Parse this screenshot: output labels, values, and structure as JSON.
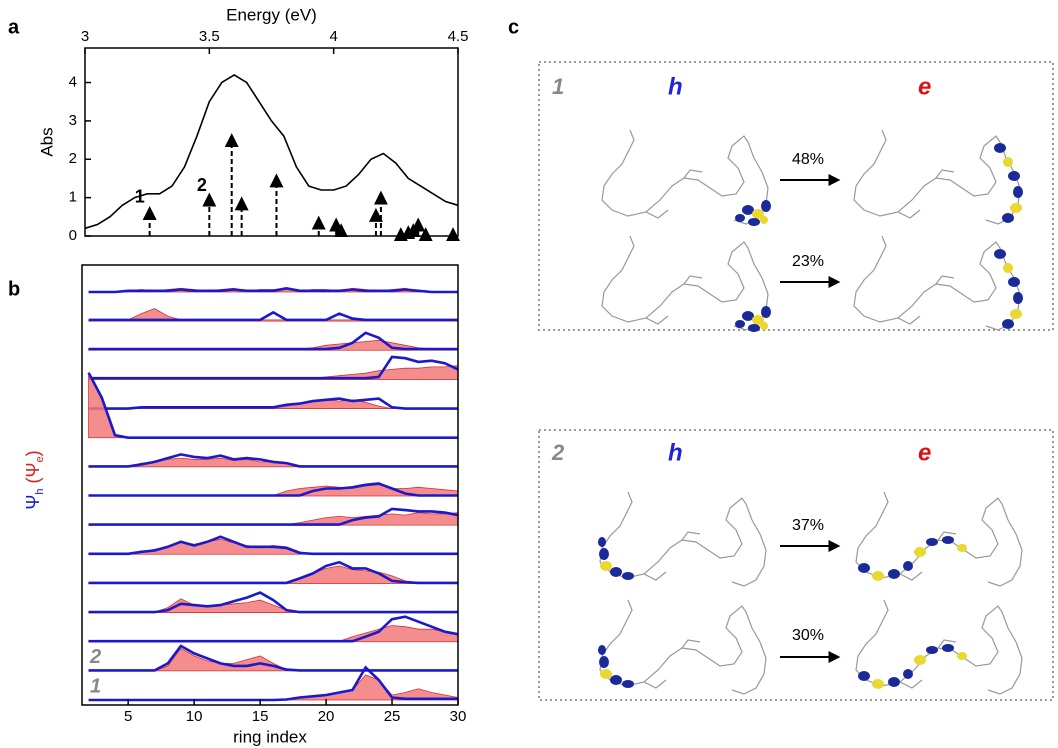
{
  "panel_labels": [
    "a",
    "b",
    "c"
  ],
  "chart_data": [
    {
      "type": "line",
      "x_label": "Energy (eV)",
      "y_label": "Abs",
      "color": "#000000",
      "x": [
        3.0,
        3.05,
        3.1,
        3.15,
        3.2,
        3.25,
        3.3,
        3.35,
        3.4,
        3.45,
        3.5,
        3.55,
        3.6,
        3.65,
        3.7,
        3.75,
        3.8,
        3.85,
        3.9,
        3.95,
        4.0,
        4.05,
        4.1,
        4.15,
        4.2,
        4.25,
        4.3,
        4.35,
        4.4,
        4.45,
        4.5
      ],
      "values": [
        0.2,
        0.3,
        0.5,
        0.8,
        1.0,
        1.1,
        1.1,
        1.3,
        1.8,
        2.6,
        3.5,
        4.0,
        4.2,
        4.0,
        3.5,
        3.0,
        2.6,
        1.8,
        1.3,
        1.2,
        1.2,
        1.3,
        1.6,
        2.0,
        2.15,
        1.9,
        1.5,
        1.3,
        1.1,
        0.9,
        0.8
      ],
      "sticks": {
        "x": [
          3.26,
          3.5,
          3.59,
          3.63,
          3.77,
          3.94,
          4.01,
          4.03,
          4.17,
          4.19,
          4.27,
          4.3,
          4.32,
          4.34,
          4.37,
          4.48
        ],
        "values": [
          0.6,
          0.95,
          2.5,
          0.85,
          1.45,
          0.35,
          0.3,
          0.15,
          0.55,
          1.0,
          0.05,
          0.1,
          0.15,
          0.3,
          0.05,
          0.05
        ]
      },
      "annotations": [
        "1",
        "2"
      ],
      "xlim": [
        3,
        4.5
      ],
      "xticks": [
        3,
        3.5,
        4,
        4.5
      ],
      "ylim": [
        0,
        4.9
      ],
      "yticks": [
        0,
        1,
        2,
        3,
        4
      ]
    },
    {
      "type": "stack",
      "x_label": "ring index",
      "y_label": [
        "Ψ",
        "h",
        " (Ψ",
        "e",
        ")"
      ],
      "h_color": "#1a1acc",
      "e_color": "#f27a7a",
      "x": [
        2,
        3,
        4,
        5,
        6,
        7,
        8,
        9,
        10,
        11,
        12,
        13,
        14,
        15,
        16,
        17,
        18,
        19,
        20,
        21,
        22,
        23,
        24,
        25,
        26,
        27,
        28,
        29,
        30
      ],
      "xlim": [
        1.5,
        30
      ],
      "xticks": [
        5,
        10,
        15,
        20,
        25,
        30
      ],
      "rows": [
        {
          "e": [
            0,
            0,
            0,
            0.05,
            0.1,
            0.05,
            0.1,
            0.15,
            0.1,
            0.05,
            0.1,
            0.15,
            0.05,
            0.1,
            0.1,
            0.15,
            0.05,
            0.1,
            0.1,
            0.05,
            0.15,
            0.1,
            0.05,
            0.1,
            0.15,
            0.05,
            0,
            0,
            0
          ],
          "h": [
            0,
            0,
            0,
            0.05,
            0.05,
            0.05,
            0.05,
            0.1,
            0.05,
            0.05,
            0.05,
            0.1,
            0.05,
            0.05,
            0.05,
            0.15,
            0.05,
            0.05,
            0.05,
            0.05,
            0.1,
            0.05,
            0.05,
            0.05,
            0.1,
            0.05,
            0,
            0,
            0
          ]
        },
        {
          "e": [
            0,
            0,
            0,
            0.05,
            0.3,
            0.5,
            0.2,
            0.05,
            0.05,
            0.05,
            0.05,
            0.05,
            0.05,
            0.05,
            0.05,
            0.05,
            0.05,
            0.05,
            0.05,
            0.05,
            0.05,
            0.05,
            0.05,
            0.05,
            0.05,
            0.05,
            0.05,
            0.05,
            0.05
          ],
          "h": [
            0.05,
            0.05,
            0.05,
            0.05,
            0.05,
            0.05,
            0.05,
            0.05,
            0.05,
            0.05,
            0.05,
            0.05,
            0.05,
            0.05,
            0.35,
            0.05,
            0.05,
            0.05,
            0.05,
            0.3,
            0.1,
            0.05,
            0.05,
            0.05,
            0.05,
            0.05,
            0.05,
            0.05,
            0.05
          ]
        },
        {
          "e": [
            0.05,
            0.05,
            0.05,
            0.05,
            0.05,
            0.05,
            0.05,
            0.05,
            0.05,
            0.05,
            0.05,
            0.05,
            0.05,
            0.05,
            0.05,
            0.05,
            0.05,
            0.1,
            0.2,
            0.25,
            0.3,
            0.35,
            0.4,
            0.3,
            0.2,
            0.1,
            0.05,
            0.05,
            0.05
          ],
          "h": [
            0.05,
            0.05,
            0.05,
            0.05,
            0.05,
            0.05,
            0.05,
            0.05,
            0.05,
            0.05,
            0.05,
            0.05,
            0.05,
            0.05,
            0.05,
            0.05,
            0.05,
            0.05,
            0.05,
            0.1,
            0.3,
            0.7,
            0.5,
            0.1,
            0.05,
            0.05,
            0.05,
            0.05,
            0.05
          ]
        },
        {
          "e": [
            0.05,
            0.05,
            0.05,
            0.05,
            0.05,
            0.05,
            0.05,
            0.05,
            0.05,
            0.05,
            0.05,
            0.05,
            0.05,
            0.05,
            0.05,
            0.05,
            0.05,
            0.05,
            0.1,
            0.15,
            0.2,
            0.25,
            0.35,
            0.4,
            0.45,
            0.45,
            0.5,
            0.5,
            0.55
          ],
          "h": [
            0.05,
            0.05,
            0.05,
            0.05,
            0.05,
            0.05,
            0.05,
            0.05,
            0.05,
            0.05,
            0.05,
            0.05,
            0.05,
            0.05,
            0.05,
            0.05,
            0.05,
            0.05,
            0.05,
            0.05,
            0.05,
            0.05,
            0.1,
            0.9,
            0.85,
            0.7,
            0.75,
            0.65,
            0.4
          ]
        },
        {
          "e": [
            0,
            0,
            0,
            0,
            0.05,
            0.05,
            0.05,
            0.05,
            0.05,
            0.05,
            0.05,
            0.05,
            0.05,
            0.05,
            0.05,
            0.1,
            0.2,
            0.3,
            0.35,
            0.3,
            0.35,
            0.25,
            0.1,
            0,
            0,
            0,
            0,
            0,
            0
          ],
          "h": [
            0,
            0,
            0,
            0,
            0.05,
            0.05,
            0.05,
            0.05,
            0.05,
            0.05,
            0.05,
            0.05,
            0.05,
            0.05,
            0.05,
            0.15,
            0.2,
            0.3,
            0.35,
            0.4,
            0.3,
            0.35,
            0.4,
            0.05,
            0,
            0,
            0,
            0,
            0
          ]
        },
        {
          "e": [
            2.6,
            1.5,
            0.1,
            0,
            0,
            0,
            0,
            0,
            0,
            0,
            0,
            0,
            0,
            0,
            0,
            0,
            0,
            0,
            0,
            0,
            0,
            0,
            0,
            0,
            0,
            0,
            0,
            0,
            0
          ],
          "h": [
            2.6,
            1.6,
            0.1,
            0,
            0,
            0,
            0,
            0,
            0,
            0,
            0,
            0,
            0,
            0,
            0,
            0,
            0,
            0,
            0,
            0,
            0,
            0,
            0,
            0,
            0,
            0,
            0,
            0,
            0
          ]
        },
        {
          "e": [
            0.02,
            0.02,
            0.02,
            0.02,
            0.15,
            0.2,
            0.3,
            0.35,
            0.3,
            0.3,
            0.35,
            0.25,
            0.3,
            0.2,
            0.2,
            0.15,
            0.02,
            0.02,
            0.02,
            0.02,
            0.02,
            0.02,
            0.02,
            0.02,
            0.02,
            0.02,
            0.02,
            0.02,
            0.02
          ],
          "h": [
            0.02,
            0.02,
            0.02,
            0.02,
            0.1,
            0.2,
            0.35,
            0.5,
            0.4,
            0.35,
            0.45,
            0.3,
            0.35,
            0.3,
            0.2,
            0.15,
            0.02,
            0.02,
            0.02,
            0.02,
            0.02,
            0.02,
            0.02,
            0.02,
            0.02,
            0.02,
            0.02,
            0.02,
            0.02
          ]
        },
        {
          "e": [
            0.02,
            0.02,
            0.02,
            0.02,
            0.02,
            0.02,
            0.02,
            0.02,
            0.02,
            0.02,
            0.02,
            0.02,
            0.02,
            0.02,
            0.02,
            0.2,
            0.3,
            0.35,
            0.4,
            0.35,
            0.3,
            0.4,
            0.45,
            0.3,
            0.3,
            0.35,
            0.3,
            0.25,
            0.2
          ],
          "h": [
            0.02,
            0.02,
            0.02,
            0.02,
            0.02,
            0.02,
            0.02,
            0.02,
            0.02,
            0.02,
            0.02,
            0.02,
            0.02,
            0.02,
            0.02,
            0.02,
            0.02,
            0.2,
            0.3,
            0.3,
            0.35,
            0.45,
            0.5,
            0.3,
            0.1,
            0.02,
            0.02,
            0.02,
            0.02
          ]
        },
        {
          "e": [
            0.02,
            0.02,
            0.02,
            0.02,
            0.02,
            0.02,
            0.02,
            0.02,
            0.02,
            0.02,
            0.02,
            0.02,
            0.02,
            0.02,
            0.02,
            0.02,
            0.1,
            0.2,
            0.3,
            0.35,
            0.3,
            0.35,
            0.4,
            0.45,
            0.4,
            0.5,
            0.45,
            0.45,
            0.5
          ],
          "h": [
            0.02,
            0.02,
            0.02,
            0.02,
            0.02,
            0.02,
            0.02,
            0.02,
            0.02,
            0.02,
            0.02,
            0.02,
            0.02,
            0.02,
            0.02,
            0.02,
            0.02,
            0.02,
            0.02,
            0.02,
            0.2,
            0.3,
            0.35,
            0.65,
            0.6,
            0.55,
            0.55,
            0.5,
            0.4
          ]
        },
        {
          "e": [
            0.02,
            0.02,
            0.02,
            0.02,
            0.1,
            0.2,
            0.3,
            0.5,
            0.4,
            0.5,
            0.6,
            0.45,
            0.35,
            0.3,
            0.35,
            0.3,
            0.1,
            0.02,
            0.02,
            0.02,
            0.02,
            0.02,
            0.02,
            0.02,
            0.02,
            0.02,
            0.02,
            0.02,
            0.02
          ],
          "h": [
            0.02,
            0.02,
            0.02,
            0.02,
            0.1,
            0.15,
            0.3,
            0.5,
            0.35,
            0.5,
            0.7,
            0.5,
            0.3,
            0.3,
            0.3,
            0.25,
            0.05,
            0.02,
            0.02,
            0.02,
            0.02,
            0.02,
            0.02,
            0.02,
            0.02,
            0.02,
            0.02,
            0.02,
            0.02
          ]
        },
        {
          "e": [
            0.02,
            0.02,
            0.02,
            0.02,
            0.02,
            0.02,
            0.02,
            0.02,
            0.02,
            0.02,
            0.02,
            0.02,
            0.02,
            0.02,
            0.02,
            0.02,
            0.2,
            0.4,
            0.6,
            0.7,
            0.55,
            0.5,
            0.45,
            0.3,
            0.1,
            0.02,
            0.02,
            0.02,
            0.02
          ],
          "h": [
            0.02,
            0.02,
            0.02,
            0.02,
            0.02,
            0.02,
            0.02,
            0.02,
            0.02,
            0.02,
            0.02,
            0.02,
            0.02,
            0.02,
            0.02,
            0.02,
            0.2,
            0.4,
            0.7,
            0.85,
            0.6,
            0.6,
            0.4,
            0.1,
            0.05,
            0.02,
            0.02,
            0.02,
            0.02
          ]
        },
        {
          "e": [
            0.02,
            0.02,
            0.02,
            0.02,
            0.02,
            0.02,
            0.2,
            0.55,
            0.3,
            0.25,
            0.3,
            0.35,
            0.4,
            0.5,
            0.3,
            0.1,
            0.02,
            0.02,
            0.02,
            0.02,
            0.02,
            0.02,
            0.02,
            0.02,
            0.02,
            0.02,
            0.02,
            0.02,
            0.02
          ],
          "h": [
            0.02,
            0.02,
            0.02,
            0.02,
            0.02,
            0.02,
            0.1,
            0.35,
            0.3,
            0.25,
            0.3,
            0.45,
            0.6,
            0.8,
            0.5,
            0.1,
            0.02,
            0.02,
            0.02,
            0.02,
            0.02,
            0.02,
            0.02,
            0.02,
            0.02,
            0.02,
            0.02,
            0.02,
            0.02
          ]
        },
        {
          "e": [
            0.02,
            0.02,
            0.02,
            0.02,
            0.02,
            0.02,
            0.02,
            0.02,
            0.02,
            0.02,
            0.02,
            0.02,
            0.02,
            0.02,
            0.02,
            0.02,
            0.02,
            0.02,
            0.02,
            0.02,
            0.2,
            0.35,
            0.5,
            0.65,
            0.6,
            0.5,
            0.5,
            0.4,
            0.3
          ],
          "h": [
            0.02,
            0.02,
            0.02,
            0.02,
            0.02,
            0.02,
            0.02,
            0.02,
            0.02,
            0.02,
            0.02,
            0.02,
            0.02,
            0.02,
            0.02,
            0.02,
            0.02,
            0.02,
            0.02,
            0.02,
            0.02,
            0.2,
            0.4,
            0.9,
            1.0,
            0.8,
            0.6,
            0.4,
            0.3
          ]
        },
        {
          "label": "2",
          "e": [
            0,
            0,
            0,
            0,
            0,
            0,
            0.2,
            0.9,
            0.6,
            0.4,
            0.3,
            0.3,
            0.45,
            0.6,
            0.3,
            0.05,
            0,
            0,
            0,
            0,
            0,
            0,
            0,
            0,
            0,
            0,
            0,
            0,
            0
          ],
          "h": [
            0.02,
            0.02,
            0.02,
            0.02,
            0.02,
            0.02,
            0.3,
            1.0,
            0.7,
            0.5,
            0.3,
            0.2,
            0.2,
            0.3,
            0.2,
            0.05,
            0.02,
            0.02,
            0.02,
            0.02,
            0.02,
            0.02,
            0.02,
            0.02,
            0.02,
            0.02,
            0.02,
            0.02,
            0.02
          ]
        },
        {
          "label": "1",
          "e": [
            0,
            0,
            0,
            0,
            0,
            0,
            0,
            0,
            0,
            0,
            0,
            0,
            0,
            0,
            0,
            0.05,
            0.1,
            0.15,
            0.2,
            0.3,
            0.4,
            1.0,
            0.8,
            0.2,
            0.3,
            0.45,
            0.3,
            0.2,
            0.1
          ],
          "h": [
            0,
            0,
            0,
            0,
            0,
            0,
            0,
            0,
            0,
            0,
            0,
            0,
            0,
            0,
            0,
            0.02,
            0.1,
            0.15,
            0.2,
            0.3,
            0.4,
            1.3,
            0.8,
            0.1,
            0.05,
            0.05,
            0.05,
            0.05,
            0.05
          ]
        }
      ]
    }
  ],
  "panel_c": {
    "groups": [
      {
        "label": "1",
        "hole": "h",
        "electron": "e",
        "transitions": [
          "48%",
          "23%"
        ]
      },
      {
        "label": "2",
        "hole": "h",
        "electron": "e",
        "transitions": [
          "37%",
          "30%"
        ]
      }
    ]
  }
}
